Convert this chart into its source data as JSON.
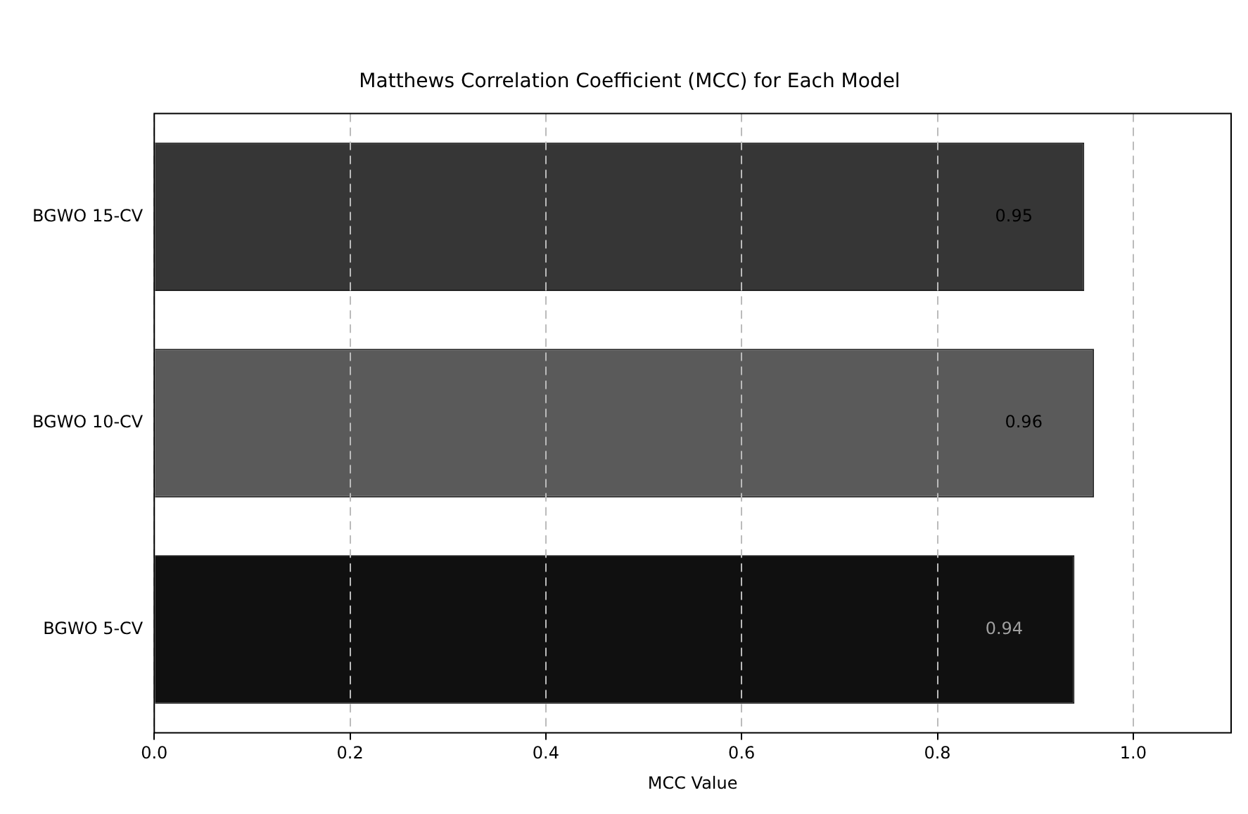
{
  "chart_data": {
    "type": "bar",
    "orientation": "horizontal",
    "title": "Matthews Correlation Coefficient (MCC) for Each Model",
    "xlabel": "MCC Value",
    "categories": [
      "BGWO 15-CV",
      "BGWO 10-CV",
      "BGWO 5-CV"
    ],
    "values": [
      0.95,
      0.96,
      0.94
    ],
    "colors": [
      "#363636",
      "#5a5a5a",
      "#101010"
    ],
    "xlim": [
      0,
      1.1
    ],
    "xticks": [
      {
        "value": 0,
        "label": "0.0"
      },
      {
        "value": 0.2,
        "label": "0.2"
      },
      {
        "value": 0.4,
        "label": "0.4"
      },
      {
        "value": 0.6,
        "label": "0.6"
      },
      {
        "value": 0.8,
        "label": "0.8"
      },
      {
        "value": 1,
        "label": "1.0"
      }
    ],
    "data_labels": true,
    "grid": "x",
    "line_style": "dashed"
  }
}
